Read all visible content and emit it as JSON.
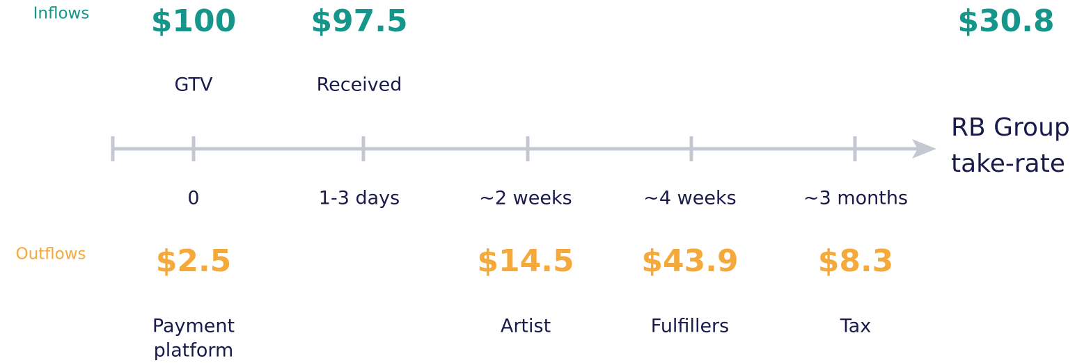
{
  "inflows": {
    "label": "Inflows",
    "items": [
      {
        "amount": "$100",
        "label": [
          "GTV"
        ]
      },
      {
        "amount": "$97.5",
        "label": [
          "Received"
        ]
      },
      {
        "amount": "$30.8",
        "label": [
          "RB Group",
          "take-rate"
        ]
      }
    ]
  },
  "timeline": [
    "0",
    "1-3 days",
    "~2 weeks",
    "~4 weeks",
    "~3 months"
  ],
  "outflows": {
    "label": "Outflows",
    "items": [
      {
        "amount": "$2.5",
        "label": [
          "Payment",
          "platform"
        ]
      },
      {
        "amount": "$14.5",
        "label": [
          "Artist"
        ]
      },
      {
        "amount": "$43.9",
        "label": [
          "Fulfillers"
        ]
      },
      {
        "amount": "$8.3",
        "label": [
          "Tax"
        ]
      }
    ]
  }
}
